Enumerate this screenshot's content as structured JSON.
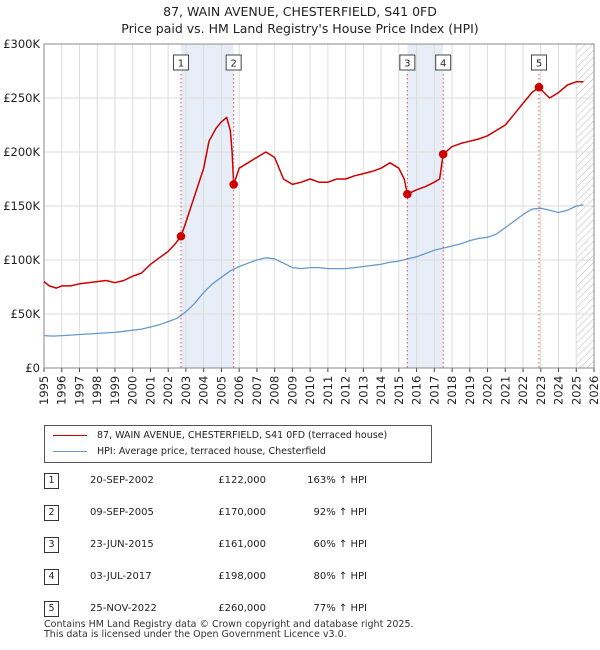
{
  "title_line1": "87, WAIN AVENUE, CHESTERFIELD, S41 0FD",
  "title_line2": "Price paid vs. HM Land Registry's House Price Index (HPI)",
  "legend": {
    "property_label": "87, WAIN AVENUE, CHESTERFIELD, S41 0FD (terraced house)",
    "hpi_label": "HPI: Average price, terraced house, Chesterfield"
  },
  "colors": {
    "property_line": "#cc0000",
    "hpi_line": "#6699cc",
    "shade": "#e8eef8",
    "grid": "#dddddd"
  },
  "sales": [
    {
      "num": "1",
      "date": "20-SEP-2002",
      "price": "£122,000",
      "hpi": "163% ↑ HPI"
    },
    {
      "num": "2",
      "date": "09-SEP-2005",
      "price": "£170,000",
      "hpi": "92% ↑ HPI"
    },
    {
      "num": "3",
      "date": "23-JUN-2015",
      "price": "£161,000",
      "hpi": "60% ↑ HPI"
    },
    {
      "num": "4",
      "date": "03-JUL-2017",
      "price": "£198,000",
      "hpi": "80% ↑ HPI"
    },
    {
      "num": "5",
      "date": "25-NOV-2022",
      "price": "£260,000",
      "hpi": "77% ↑ HPI"
    }
  ],
  "footer": {
    "line1": "Contains HM Land Registry data © Crown copyright and database right 2025.",
    "line2": "This data is licensed under the Open Government Licence v3.0."
  },
  "chart_data": {
    "type": "line",
    "title": "87, WAIN AVENUE, CHESTERFIELD, S41 0FD — Price paid vs. HM Land Registry's House Price Index (HPI)",
    "xlabel": "",
    "ylabel": "",
    "xlim": [
      1995,
      2026
    ],
    "ylim": [
      0,
      300000
    ],
    "x_ticks": [
      1995,
      1996,
      1997,
      1998,
      1999,
      2000,
      2001,
      2002,
      2003,
      2004,
      2005,
      2006,
      2007,
      2008,
      2009,
      2010,
      2011,
      2012,
      2013,
      2014,
      2015,
      2016,
      2017,
      2018,
      2019,
      2020,
      2021,
      2022,
      2023,
      2024,
      2025,
      2026
    ],
    "y_ticks": [
      0,
      50000,
      100000,
      150000,
      200000,
      250000,
      300000
    ],
    "y_tick_labels": [
      "£0",
      "£50K",
      "£100K",
      "£150K",
      "£200K",
      "£250K",
      "£300K"
    ],
    "grid": true,
    "hatched_future_from": 2025.0,
    "shaded_periods": [
      [
        2002.72,
        2005.69
      ],
      [
        2015.48,
        2017.5
      ]
    ],
    "sale_markers": [
      {
        "label": "1",
        "x": 2002.72,
        "y": 122000
      },
      {
        "label": "2",
        "x": 2005.69,
        "y": 170000
      },
      {
        "label": "3",
        "x": 2015.48,
        "y": 161000
      },
      {
        "label": "4",
        "x": 2017.5,
        "y": 198000
      },
      {
        "label": "5",
        "x": 2022.9,
        "y": 260000
      }
    ],
    "series": [
      {
        "name": "87, WAIN AVENUE, CHESTERFIELD, S41 0FD (terraced house)",
        "color": "#cc0000",
        "x": [
          1995.0,
          1995.3,
          1995.7,
          1996.0,
          1996.5,
          1997.0,
          1997.5,
          1998.0,
          1998.5,
          1999.0,
          1999.5,
          2000.0,
          2000.5,
          2001.0,
          2001.5,
          2002.0,
          2002.4,
          2002.72,
          2003.0,
          2003.5,
          2004.0,
          2004.3,
          2004.7,
          2005.0,
          2005.3,
          2005.5,
          2005.6,
          2005.69,
          2006.0,
          2006.5,
          2007.0,
          2007.5,
          2008.0,
          2008.5,
          2009.0,
          2009.5,
          2010.0,
          2010.5,
          2011.0,
          2011.5,
          2012.0,
          2012.5,
          2013.0,
          2013.5,
          2014.0,
          2014.5,
          2015.0,
          2015.3,
          2015.48,
          2016.0,
          2016.5,
          2017.0,
          2017.3,
          2017.5,
          2018.0,
          2018.5,
          2019.0,
          2019.5,
          2020.0,
          2020.5,
          2021.0,
          2021.5,
          2022.0,
          2022.5,
          2022.9,
          2023.0,
          2023.5,
          2024.0,
          2024.5,
          2025.0,
          2025.4
        ],
        "values": [
          80000,
          76000,
          74000,
          76000,
          76000,
          78000,
          79000,
          80000,
          81000,
          79000,
          81000,
          85000,
          88000,
          96000,
          102000,
          108000,
          115000,
          122000,
          135000,
          160000,
          185000,
          210000,
          222000,
          228000,
          232000,
          220000,
          200000,
          170000,
          185000,
          190000,
          195000,
          200000,
          195000,
          175000,
          170000,
          172000,
          175000,
          172000,
          172000,
          175000,
          175000,
          178000,
          180000,
          182000,
          185000,
          190000,
          185000,
          175000,
          161000,
          165000,
          168000,
          172000,
          175000,
          198000,
          205000,
          208000,
          210000,
          212000,
          215000,
          220000,
          225000,
          235000,
          245000,
          255000,
          260000,
          258000,
          250000,
          255000,
          262000,
          265000,
          265000
        ]
      },
      {
        "name": "HPI: Average price, terraced house, Chesterfield",
        "color": "#6699cc",
        "x": [
          1995.0,
          1995.5,
          1996.0,
          1996.5,
          1997.0,
          1997.5,
          1998.0,
          1998.5,
          1999.0,
          1999.5,
          2000.0,
          2000.5,
          2001.0,
          2001.5,
          2002.0,
          2002.5,
          2003.0,
          2003.5,
          2004.0,
          2004.5,
          2005.0,
          2005.5,
          2006.0,
          2006.5,
          2007.0,
          2007.5,
          2008.0,
          2008.5,
          2009.0,
          2009.5,
          2010.0,
          2010.5,
          2011.0,
          2011.5,
          2012.0,
          2012.5,
          2013.0,
          2013.5,
          2014.0,
          2014.5,
          2015.0,
          2015.5,
          2016.0,
          2016.5,
          2017.0,
          2017.5,
          2018.0,
          2018.5,
          2019.0,
          2019.5,
          2020.0,
          2020.5,
          2021.0,
          2021.5,
          2022.0,
          2022.5,
          2023.0,
          2023.5,
          2024.0,
          2024.5,
          2025.0,
          2025.4
        ],
        "values": [
          30000,
          29500,
          30000,
          30500,
          31000,
          31500,
          32000,
          32500,
          33000,
          34000,
          35000,
          36000,
          38000,
          40000,
          43000,
          46000,
          52000,
          60000,
          70000,
          78000,
          84000,
          90000,
          94000,
          97000,
          100000,
          102000,
          101000,
          97000,
          93000,
          92000,
          93000,
          93000,
          92000,
          92000,
          92000,
          93000,
          94000,
          95000,
          96000,
          98000,
          99000,
          101000,
          103000,
          106000,
          109000,
          111000,
          113000,
          115000,
          118000,
          120000,
          121000,
          124000,
          130000,
          136000,
          142000,
          147000,
          148000,
          146000,
          144000,
          146000,
          150000,
          151000
        ]
      }
    ]
  }
}
